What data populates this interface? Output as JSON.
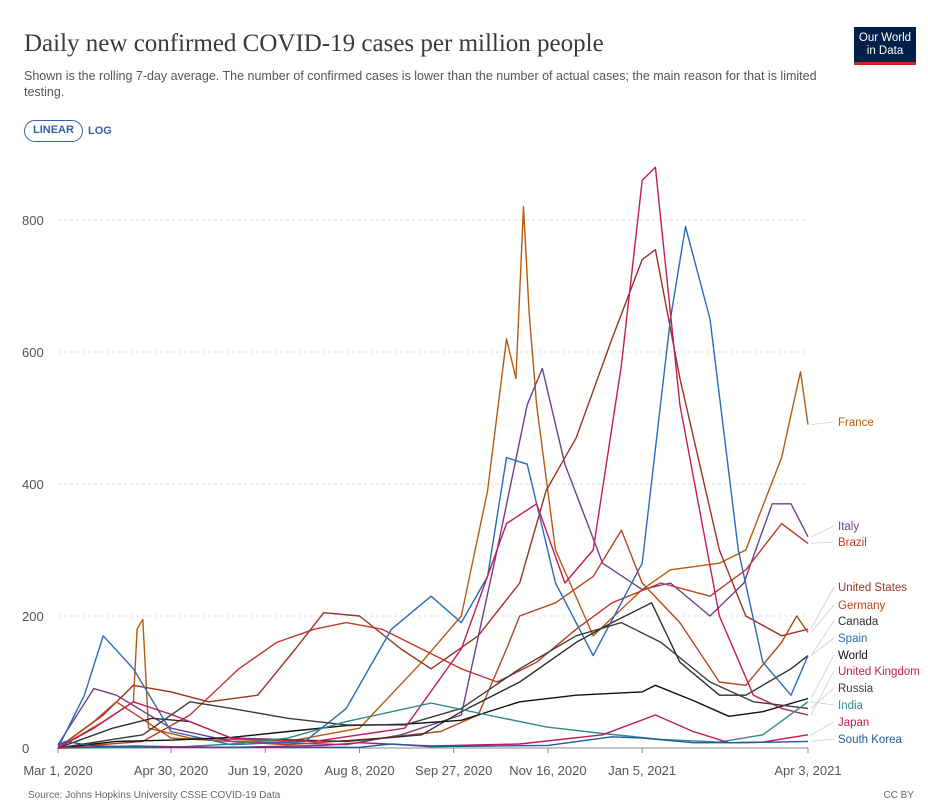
{
  "header": {
    "title": "Daily new confirmed COVID-19 cases per million people",
    "subtitle": "Shown is the rolling 7-day average. The number of confirmed cases is lower than the number of actual cases; the main reason for that is limited testing.",
    "logo_text": "Our World in Data",
    "logo_color": "#002147"
  },
  "controls": {
    "linear_label": "LINEAR",
    "log_label": "LOG",
    "active": "LINEAR"
  },
  "footer": {
    "source": "Source: Johns Hopkins University CSSE COVID-19 Data",
    "license": "CC BY"
  },
  "chart_data": {
    "type": "line",
    "title": "Daily new confirmed COVID-19 cases per million people",
    "xlabel": "",
    "ylabel": "",
    "x_range": [
      "2020-03-01",
      "2021-04-03"
    ],
    "ylim": [
      0,
      880
    ],
    "y_ticks": [
      0,
      200,
      400,
      600,
      800
    ],
    "x_ticks": [
      {
        "date": "2020-03-01",
        "label": "Mar 1, 2020"
      },
      {
        "date": "2020-04-30",
        "label": "Apr 30, 2020"
      },
      {
        "date": "2020-06-19",
        "label": "Jun 19, 2020"
      },
      {
        "date": "2020-08-08",
        "label": "Aug 8, 2020"
      },
      {
        "date": "2020-09-27",
        "label": "Sep 27, 2020"
      },
      {
        "date": "2020-11-16",
        "label": "Nov 16, 2020"
      },
      {
        "date": "2021-01-05",
        "label": "Jan 5, 2021"
      },
      {
        "date": "2021-04-03",
        "label": "Apr 3, 2021"
      }
    ],
    "grid": true,
    "legend_placement": "right, labels at line ends",
    "series": [
      {
        "name": "France",
        "color": "#b85a0d",
        "points": [
          [
            "2020-03-01",
            0
          ],
          [
            "2020-03-25",
            40
          ],
          [
            "2020-04-10",
            70
          ],
          [
            "2020-04-12",
            180
          ],
          [
            "2020-04-15",
            195
          ],
          [
            "2020-04-18",
            30
          ],
          [
            "2020-05-10",
            15
          ],
          [
            "2020-07-01",
            10
          ],
          [
            "2020-08-08",
            30
          ],
          [
            "2020-09-10",
            130
          ],
          [
            "2020-10-01",
            200
          ],
          [
            "2020-10-15",
            390
          ],
          [
            "2020-10-25",
            620
          ],
          [
            "2020-10-30",
            560
          ],
          [
            "2020-11-03",
            820
          ],
          [
            "2020-11-06",
            660
          ],
          [
            "2020-11-10",
            520
          ],
          [
            "2020-11-20",
            300
          ],
          [
            "2020-12-10",
            170
          ],
          [
            "2021-01-05",
            240
          ],
          [
            "2021-01-20",
            270
          ],
          [
            "2021-02-15",
            280
          ],
          [
            "2021-03-01",
            300
          ],
          [
            "2021-03-20",
            440
          ],
          [
            "2021-03-30",
            570
          ],
          [
            "2021-04-03",
            490
          ]
        ]
      },
      {
        "name": "Italy",
        "color": "#6d3e91",
        "points": [
          [
            "2020-03-01",
            5
          ],
          [
            "2020-03-20",
            90
          ],
          [
            "2020-04-01",
            80
          ],
          [
            "2020-04-30",
            30
          ],
          [
            "2020-06-01",
            10
          ],
          [
            "2020-08-01",
            5
          ],
          [
            "2020-08-30",
            20
          ],
          [
            "2020-10-01",
            50
          ],
          [
            "2020-10-20",
            300
          ],
          [
            "2020-11-05",
            520
          ],
          [
            "2020-11-13",
            575
          ],
          [
            "2020-11-25",
            430
          ],
          [
            "2020-12-15",
            280
          ],
          [
            "2021-01-05",
            240
          ],
          [
            "2021-01-20",
            250
          ],
          [
            "2021-02-10",
            200
          ],
          [
            "2021-02-28",
            250
          ],
          [
            "2021-03-15",
            370
          ],
          [
            "2021-03-25",
            370
          ],
          [
            "2021-04-03",
            320
          ]
        ]
      },
      {
        "name": "Brazil",
        "color": "#c0392b",
        "points": [
          [
            "2020-03-01",
            0
          ],
          [
            "2020-04-15",
            10
          ],
          [
            "2020-05-10",
            50
          ],
          [
            "2020-06-05",
            120
          ],
          [
            "2020-06-25",
            160
          ],
          [
            "2020-07-15",
            180
          ],
          [
            "2020-08-01",
            190
          ],
          [
            "2020-08-20",
            180
          ],
          [
            "2020-09-10",
            150
          ],
          [
            "2020-10-01",
            120
          ],
          [
            "2020-10-20",
            100
          ],
          [
            "2020-11-10",
            130
          ],
          [
            "2020-12-01",
            180
          ],
          [
            "2020-12-20",
            220
          ],
          [
            "2021-01-15",
            250
          ],
          [
            "2021-02-10",
            230
          ],
          [
            "2021-03-01",
            270
          ],
          [
            "2021-03-20",
            340
          ],
          [
            "2021-04-03",
            310
          ]
        ]
      },
      {
        "name": "United States",
        "color": "#9a3324",
        "points": [
          [
            "2020-03-01",
            0
          ],
          [
            "2020-03-25",
            50
          ],
          [
            "2020-04-10",
            95
          ],
          [
            "2020-04-30",
            85
          ],
          [
            "2020-05-20",
            70
          ],
          [
            "2020-06-15",
            80
          ],
          [
            "2020-07-05",
            150
          ],
          [
            "2020-07-20",
            205
          ],
          [
            "2020-08-08",
            200
          ],
          [
            "2020-08-30",
            150
          ],
          [
            "2020-09-15",
            120
          ],
          [
            "2020-10-10",
            170
          ],
          [
            "2020-11-01",
            250
          ],
          [
            "2020-11-15",
            390
          ],
          [
            "2020-12-01",
            470
          ],
          [
            "2020-12-20",
            620
          ],
          [
            "2021-01-05",
            740
          ],
          [
            "2021-01-12",
            755
          ],
          [
            "2021-01-25",
            560
          ],
          [
            "2021-02-15",
            300
          ],
          [
            "2021-03-01",
            200
          ],
          [
            "2021-03-20",
            170
          ],
          [
            "2021-04-03",
            180
          ]
        ]
      },
      {
        "name": "Germany",
        "color": "#b8451f",
        "points": [
          [
            "2020-03-01",
            0
          ],
          [
            "2020-03-20",
            40
          ],
          [
            "2020-04-01",
            70
          ],
          [
            "2020-04-30",
            15
          ],
          [
            "2020-07-01",
            5
          ],
          [
            "2020-08-20",
            15
          ],
          [
            "2020-09-20",
            25
          ],
          [
            "2020-10-10",
            50
          ],
          [
            "2020-10-25",
            150
          ],
          [
            "2020-11-01",
            200
          ],
          [
            "2020-11-20",
            220
          ],
          [
            "2020-12-10",
            260
          ],
          [
            "2020-12-25",
            330
          ],
          [
            "2021-01-05",
            250
          ],
          [
            "2021-01-25",
            190
          ],
          [
            "2021-02-15",
            100
          ],
          [
            "2021-03-01",
            95
          ],
          [
            "2021-03-20",
            160
          ],
          [
            "2021-03-28",
            200
          ],
          [
            "2021-04-03",
            175
          ]
        ]
      },
      {
        "name": "Canada",
        "color": "#2f2f2f",
        "points": [
          [
            "2020-03-01",
            0
          ],
          [
            "2020-03-30",
            30
          ],
          [
            "2020-04-20",
            45
          ],
          [
            "2020-05-10",
            40
          ],
          [
            "2020-06-01",
            15
          ],
          [
            "2020-08-01",
            10
          ],
          [
            "2020-09-10",
            20
          ],
          [
            "2020-10-01",
            55
          ],
          [
            "2020-11-01",
            100
          ],
          [
            "2020-12-01",
            160
          ],
          [
            "2020-12-20",
            190
          ],
          [
            "2021-01-10",
            220
          ],
          [
            "2021-01-25",
            130
          ],
          [
            "2021-02-15",
            80
          ],
          [
            "2021-03-01",
            80
          ],
          [
            "2021-03-25",
            120
          ],
          [
            "2021-04-03",
            140
          ]
        ]
      },
      {
        "name": "Spain",
        "color": "#286bbb",
        "points": [
          [
            "2020-03-01",
            0
          ],
          [
            "2020-03-15",
            80
          ],
          [
            "2020-03-25",
            170
          ],
          [
            "2020-04-10",
            120
          ],
          [
            "2020-04-30",
            25
          ],
          [
            "2020-06-01",
            5
          ],
          [
            "2020-07-10",
            10
          ],
          [
            "2020-08-01",
            60
          ],
          [
            "2020-08-25",
            180
          ],
          [
            "2020-09-15",
            230
          ],
          [
            "2020-10-01",
            190
          ],
          [
            "2020-10-15",
            260
          ],
          [
            "2020-10-25",
            440
          ],
          [
            "2020-11-05",
            430
          ],
          [
            "2020-11-20",
            250
          ],
          [
            "2020-12-10",
            140
          ],
          [
            "2021-01-05",
            280
          ],
          [
            "2021-01-20",
            650
          ],
          [
            "2021-01-28",
            790
          ],
          [
            "2021-02-10",
            650
          ],
          [
            "2021-02-25",
            300
          ],
          [
            "2021-03-10",
            130
          ],
          [
            "2021-03-25",
            80
          ],
          [
            "2021-04-03",
            140
          ]
        ]
      },
      {
        "name": "World",
        "color": "#111111",
        "points": [
          [
            "2020-03-01",
            0
          ],
          [
            "2020-04-01",
            10
          ],
          [
            "2020-05-01",
            12
          ],
          [
            "2020-06-01",
            16
          ],
          [
            "2020-07-01",
            25
          ],
          [
            "2020-08-01",
            34
          ],
          [
            "2020-09-01",
            36
          ],
          [
            "2020-10-01",
            42
          ],
          [
            "2020-11-01",
            70
          ],
          [
            "2020-12-01",
            80
          ],
          [
            "2021-01-05",
            85
          ],
          [
            "2021-01-12",
            95
          ],
          [
            "2021-02-01",
            72
          ],
          [
            "2021-02-20",
            48
          ],
          [
            "2021-03-10",
            55
          ],
          [
            "2021-04-03",
            75
          ]
        ]
      },
      {
        "name": "United Kingdom",
        "color": "#c31b5d",
        "points": [
          [
            "2020-03-01",
            0
          ],
          [
            "2020-03-20",
            30
          ],
          [
            "2020-04-10",
            70
          ],
          [
            "2020-05-01",
            50
          ],
          [
            "2020-06-01",
            15
          ],
          [
            "2020-07-15",
            10
          ],
          [
            "2020-09-01",
            30
          ],
          [
            "2020-10-01",
            150
          ],
          [
            "2020-10-25",
            340
          ],
          [
            "2020-11-10",
            370
          ],
          [
            "2020-11-25",
            250
          ],
          [
            "2020-12-10",
            300
          ],
          [
            "2020-12-25",
            580
          ],
          [
            "2021-01-05",
            860
          ],
          [
            "2021-01-12",
            880
          ],
          [
            "2021-01-25",
            520
          ],
          [
            "2021-02-15",
            200
          ],
          [
            "2021-03-05",
            80
          ],
          [
            "2021-03-20",
            60
          ],
          [
            "2021-04-03",
            50
          ]
        ]
      },
      {
        "name": "Russia",
        "color": "#3d3d3d",
        "points": [
          [
            "2020-03-01",
            0
          ],
          [
            "2020-04-15",
            20
          ],
          [
            "2020-05-10",
            70
          ],
          [
            "2020-06-01",
            60
          ],
          [
            "2020-07-01",
            45
          ],
          [
            "2020-08-01",
            35
          ],
          [
            "2020-09-01",
            35
          ],
          [
            "2020-10-01",
            60
          ],
          [
            "2020-11-01",
            120
          ],
          [
            "2020-12-01",
            170
          ],
          [
            "2020-12-25",
            190
          ],
          [
            "2021-01-15",
            160
          ],
          [
            "2021-02-10",
            100
          ],
          [
            "2021-03-05",
            70
          ],
          [
            "2021-04-03",
            60
          ]
        ]
      },
      {
        "name": "India",
        "color": "#2e8b87",
        "points": [
          [
            "2020-03-01",
            0
          ],
          [
            "2020-05-01",
            1
          ],
          [
            "2020-06-01",
            6
          ],
          [
            "2020-07-01",
            15
          ],
          [
            "2020-08-01",
            40
          ],
          [
            "2020-09-15",
            68
          ],
          [
            "2020-10-15",
            50
          ],
          [
            "2020-11-15",
            32
          ],
          [
            "2020-12-15",
            22
          ],
          [
            "2021-01-15",
            13
          ],
          [
            "2021-02-15",
            9
          ],
          [
            "2021-03-10",
            20
          ],
          [
            "2021-04-03",
            70
          ]
        ]
      },
      {
        "name": "Japan",
        "color": "#c2185b",
        "points": [
          [
            "2020-03-01",
            0
          ],
          [
            "2020-04-10",
            3
          ],
          [
            "2020-05-01",
            2
          ],
          [
            "2020-06-01",
            1
          ],
          [
            "2020-07-20",
            4
          ],
          [
            "2020-08-08",
            8
          ],
          [
            "2020-09-15",
            3
          ],
          [
            "2020-11-01",
            6
          ],
          [
            "2020-12-15",
            20
          ],
          [
            "2021-01-12",
            50
          ],
          [
            "2021-02-01",
            25
          ],
          [
            "2021-02-20",
            8
          ],
          [
            "2021-03-10",
            9
          ],
          [
            "2021-04-03",
            20
          ]
        ]
      },
      {
        "name": "South Korea",
        "color": "#1f5a9e",
        "points": [
          [
            "2020-03-01",
            4
          ],
          [
            "2020-03-05",
            10
          ],
          [
            "2020-03-20",
            3
          ],
          [
            "2020-05-01",
            1
          ],
          [
            "2020-08-08",
            1
          ],
          [
            "2020-08-25",
            6
          ],
          [
            "2020-09-15",
            2
          ],
          [
            "2020-11-16",
            4
          ],
          [
            "2020-12-20",
            17
          ],
          [
            "2021-01-05",
            15
          ],
          [
            "2021-02-01",
            8
          ],
          [
            "2021-03-01",
            8
          ],
          [
            "2021-04-03",
            10
          ]
        ]
      }
    ],
    "label_order": [
      "France",
      "Italy",
      "Brazil",
      "United States",
      "Germany",
      "Canada",
      "Spain",
      "World",
      "United Kingdom",
      "Russia",
      "India",
      "Japan",
      "South Korea"
    ]
  }
}
